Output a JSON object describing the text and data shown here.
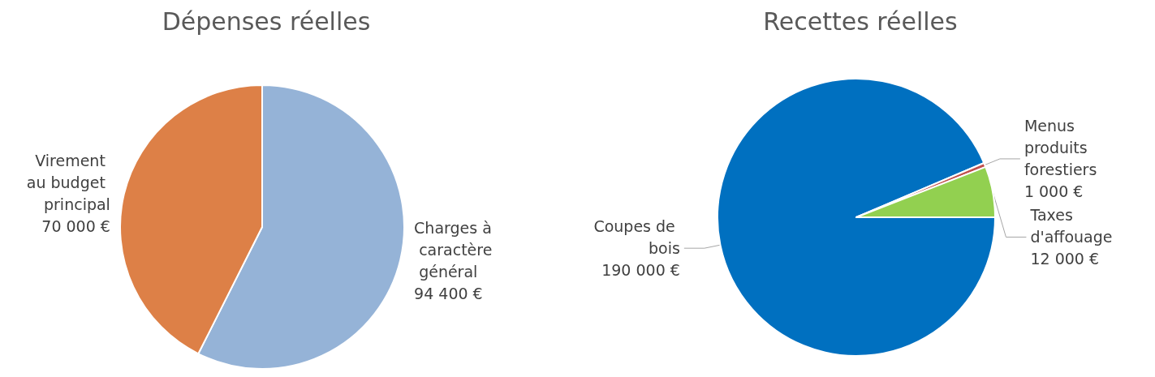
{
  "chart_data": [
    {
      "type": "pie",
      "title": "Dépenses réelles",
      "categories": [
        "Charges à caractère général",
        "Virement au budget principal"
      ],
      "values": [
        94400,
        70000
      ],
      "value_labels": [
        "94 400 €",
        "70 000 €"
      ],
      "colors": [
        "#95b3d7",
        "#dd8047"
      ]
    },
    {
      "type": "pie",
      "title": "Recettes réelles",
      "categories": [
        "Coupes de bois",
        "Menus produits forestiers",
        "Taxes d'affouage"
      ],
      "values": [
        190000,
        1000,
        12000
      ],
      "value_labels": [
        "190 000 €",
        "1 000 €",
        "12 000 €"
      ],
      "colors": [
        "#0070c0",
        "#c0504d",
        "#92d050"
      ]
    }
  ]
}
